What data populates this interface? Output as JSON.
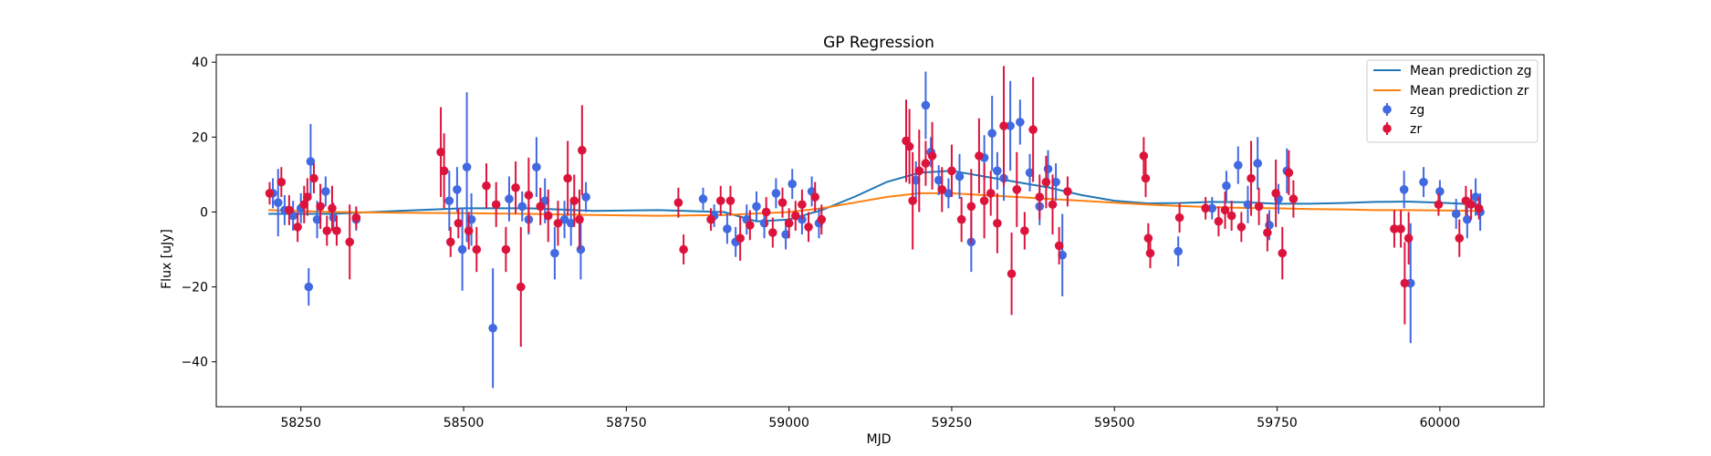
{
  "chart_data": {
    "type": "scatter",
    "title": "GP Regression",
    "xlabel": "MJD",
    "ylabel": "Flux [uJy]",
    "xlim": [
      58120,
      60160
    ],
    "ylim": [
      -52,
      42
    ],
    "x_ticks": [
      "58250",
      "58500",
      "58750",
      "59000",
      "59250",
      "59500",
      "59750",
      "60000"
    ],
    "y_ticks": [
      "40",
      "20",
      "0",
      "−20",
      "−40"
    ],
    "grid": false,
    "legend_position": "top-right",
    "legend": {
      "mean_zg": "Mean prediction zg",
      "mean_zr": "Mean prediction zr",
      "zg": "zg",
      "zr": "zr"
    },
    "colors": {
      "zg_points": "#4169e1",
      "zr_points": "#dc143c",
      "mean_zg_line": "#1f77b4",
      "mean_zr_line": "#ff7f0e"
    },
    "lines": [
      {
        "name": "Mean prediction zg",
        "x": [
          58200,
          58300,
          58400,
          58500,
          58600,
          58700,
          58800,
          58900,
          58950,
          59000,
          59050,
          59100,
          59150,
          59200,
          59250,
          59300,
          59350,
          59400,
          59450,
          59500,
          59550,
          59600,
          59650,
          59700,
          59750,
          59800,
          59850,
          59900,
          59950,
          60000,
          60060
        ],
        "y": [
          -0.5,
          -0.5,
          0.3,
          1.0,
          1.0,
          0.3,
          0.5,
          0.0,
          -2.5,
          -2.0,
          0.5,
          4.0,
          8.0,
          10.5,
          11.0,
          9.5,
          8.0,
          6.5,
          4.5,
          3.0,
          2.3,
          2.4,
          2.7,
          2.6,
          2.2,
          2.2,
          2.4,
          2.7,
          2.8,
          2.5,
          2.0
        ]
      },
      {
        "name": "Mean prediction zr",
        "x": [
          58200,
          58300,
          58400,
          58500,
          58600,
          58700,
          58800,
          58900,
          59000,
          59050,
          59100,
          59150,
          59200,
          59250,
          59300,
          59350,
          59400,
          59450,
          59500,
          59550,
          59600,
          59650,
          59700,
          59750,
          59800,
          59850,
          59900,
          59950,
          60000,
          60060
        ],
        "y": [
          0.5,
          0.0,
          -0.2,
          -0.3,
          -0.5,
          -0.8,
          -1.0,
          -0.8,
          0.0,
          1.0,
          2.5,
          4.0,
          5.0,
          5.0,
          4.5,
          4.0,
          3.5,
          3.0,
          2.5,
          2.0,
          1.6,
          1.3,
          1.1,
          1.0,
          0.8,
          0.7,
          0.5,
          0.5,
          0.4,
          0.3
        ]
      }
    ],
    "series": [
      {
        "name": "zg",
        "x": [
          58207,
          58215,
          58225,
          58238,
          58250,
          58262,
          58265,
          58275,
          58288,
          58300,
          58335,
          58478,
          58490,
          58498,
          58505,
          58512,
          58545,
          58570,
          58590,
          58600,
          58612,
          58625,
          58640,
          58655,
          58665,
          58680,
          58688,
          58868,
          58885,
          58905,
          58918,
          58935,
          58950,
          58962,
          58980,
          58995,
          59005,
          59020,
          59035,
          59046,
          59195,
          59210,
          59218,
          59230,
          59245,
          59262,
          59280,
          59300,
          59312,
          59320,
          59330,
          59340,
          59355,
          59370,
          59385,
          59398,
          59410,
          59420,
          59598,
          59650,
          59672,
          59690,
          59705,
          59720,
          59738,
          59752,
          59765,
          59945,
          59955,
          59975,
          60000,
          60025,
          60042,
          60055,
          60062
        ],
        "y": [
          5.0,
          2.5,
          0.5,
          -1.0,
          1.0,
          -20.0,
          13.5,
          -2.0,
          5.5,
          -1.5,
          -2.0,
          3.0,
          6.0,
          -10.0,
          12.0,
          -2.0,
          -31.0,
          3.5,
          1.5,
          -2.0,
          12.0,
          3.0,
          -11.0,
          -2.0,
          -3.0,
          -10.0,
          4.0,
          3.5,
          -1.0,
          -4.5,
          -8.0,
          -2.0,
          1.5,
          -3.0,
          5.0,
          -6.0,
          7.5,
          -2.0,
          5.5,
          -3.0,
          8.5,
          28.5,
          16.0,
          8.5,
          5.0,
          9.5,
          -8.0,
          14.5,
          21.0,
          11.0,
          9.0,
          23.0,
          24.0,
          10.5,
          1.5,
          11.5,
          8.0,
          -11.5,
          -10.5,
          1.0,
          7.0,
          12.5,
          2.0,
          13.0,
          -3.5,
          3.5,
          11.0,
          6.0,
          -19.0,
          8.0,
          5.5,
          -0.5,
          -2.0,
          4.0,
          0.0
        ],
        "err": [
          4,
          9,
          4,
          4,
          4,
          5,
          10,
          5,
          4,
          4,
          3,
          8,
          6,
          11,
          20,
          7,
          16,
          6,
          4,
          4,
          8,
          6,
          7,
          5,
          6,
          8,
          4,
          3,
          3,
          4,
          4,
          4,
          4,
          4,
          4,
          4,
          4,
          4,
          4,
          4,
          5,
          9,
          4,
          4,
          4,
          6,
          8,
          6,
          10,
          5,
          6,
          12,
          6,
          5,
          5,
          5,
          5,
          11,
          4,
          3,
          4,
          5,
          5,
          7,
          4,
          4,
          6,
          5,
          16,
          4,
          3,
          4,
          5,
          5,
          5
        ]
      },
      {
        "name": "zr",
        "x": [
          58202,
          58220,
          58232,
          58245,
          58255,
          58260,
          58270,
          58280,
          58290,
          58298,
          58305,
          58325,
          58335,
          58465,
          58470,
          58480,
          58492,
          58508,
          58520,
          58535,
          58550,
          58565,
          58580,
          58588,
          58600,
          58618,
          58630,
          58645,
          58660,
          58670,
          58678,
          58682,
          58830,
          58838,
          58880,
          58895,
          58910,
          58925,
          58940,
          58965,
          58975,
          58990,
          59000,
          59010,
          59020,
          59030,
          59040,
          59050,
          59180,
          59185,
          59190,
          59200,
          59210,
          59220,
          59235,
          59250,
          59265,
          59280,
          59292,
          59300,
          59310,
          59320,
          59330,
          59342,
          59350,
          59362,
          59375,
          59385,
          59395,
          59405,
          59415,
          59428,
          59545,
          59548,
          59552,
          59555,
          59600,
          59640,
          59660,
          59670,
          59680,
          59695,
          59710,
          59722,
          59735,
          59748,
          59758,
          59768,
          59775,
          59930,
          59940,
          59946,
          59952,
          59998,
          60030,
          60040,
          60048,
          60060
        ],
        "y": [
          5.0,
          8.0,
          0.5,
          -4.0,
          2.0,
          4.0,
          9.0,
          1.5,
          -5.0,
          1.0,
          -5.0,
          -8.0,
          -1.5,
          16.0,
          11.0,
          -8.0,
          -3.0,
          -5.0,
          -10.0,
          7.0,
          2.0,
          -10.0,
          6.5,
          -20.0,
          4.5,
          1.5,
          -1.0,
          -3.0,
          9.0,
          3.0,
          -2.0,
          16.5,
          2.5,
          -10.0,
          -2.0,
          3.0,
          3.0,
          -7.0,
          -3.5,
          0.0,
          -5.5,
          2.5,
          -3.0,
          -1.0,
          2.0,
          -4.0,
          4.0,
          -2.0,
          19.0,
          17.5,
          3.0,
          11.0,
          13.0,
          15.0,
          6.0,
          11.0,
          -2.0,
          1.5,
          15.0,
          3.0,
          5.0,
          -3.0,
          23.0,
          -16.5,
          6.0,
          -5.0,
          22.0,
          4.0,
          8.0,
          2.0,
          -9.0,
          5.5,
          15.0,
          9.0,
          -7.0,
          -11.0,
          -1.5,
          1.0,
          -2.5,
          0.5,
          -1.0,
          -4.0,
          9.0,
          1.5,
          -5.5,
          5.0,
          -11.0,
          10.5,
          3.5,
          -4.5,
          -4.5,
          -19.0,
          -7.0,
          2.0,
          -7.0,
          3.0,
          2.0,
          1.0
        ],
        "err": [
          3,
          4,
          4,
          4,
          5,
          5,
          4,
          6,
          4,
          6,
          4,
          10,
          3,
          12,
          10,
          4,
          4,
          5,
          6,
          6,
          6,
          6,
          7,
          16,
          10,
          5,
          7,
          6,
          10,
          7,
          8,
          12,
          4,
          4,
          3,
          4,
          4,
          6,
          4,
          4,
          4,
          4,
          4,
          4,
          4,
          4,
          4,
          4,
          11,
          10,
          13,
          11,
          6,
          9,
          6,
          7,
          6,
          10,
          10,
          10,
          6,
          8,
          16,
          11,
          10,
          5,
          14,
          6,
          7,
          8,
          5,
          4,
          5,
          5,
          4,
          4,
          4,
          3,
          4,
          5,
          4,
          4,
          10,
          5,
          5,
          9,
          7,
          6,
          5,
          5,
          5,
          11,
          7,
          3,
          5,
          4,
          4,
          3
        ]
      }
    ]
  }
}
